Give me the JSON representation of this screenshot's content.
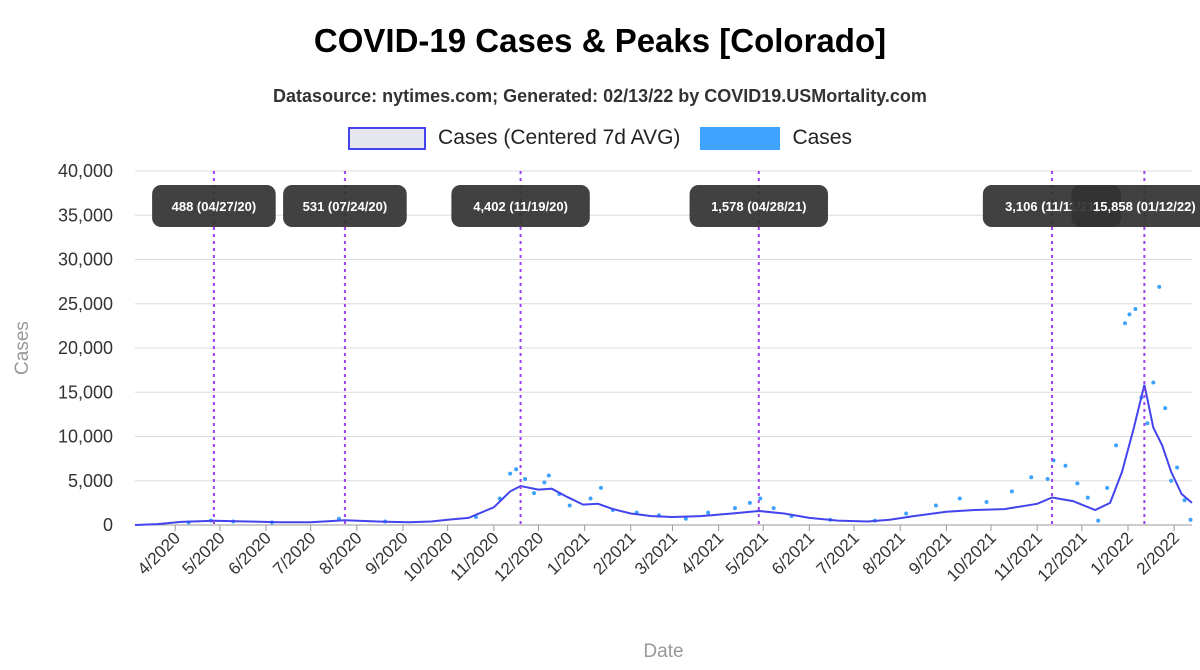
{
  "title": "COVID-19 Cases & Peaks [Colorado]",
  "subtitle": "Datasource: nytimes.com; Generated: 02/13/22 by COVID19.USMortality.com",
  "legend": {
    "avg_label": "Cases (Centered 7d AVG)",
    "cases_label": "Cases"
  },
  "colors": {
    "avg_line": "#4444ee",
    "cases_points": "#3ea2ff",
    "peak_line": "#a040ee",
    "peak_box": "#333333"
  },
  "chart_data": {
    "type": "line",
    "xlabel": "Date",
    "ylabel": "Cases",
    "ylim": [
      0,
      40000
    ],
    "y_ticks": [
      0,
      5000,
      10000,
      15000,
      20000,
      25000,
      30000,
      35000,
      40000
    ],
    "y_tick_labels": [
      "0",
      "5,000",
      "10,000",
      "15,000",
      "20,000",
      "25,000",
      "30,000",
      "35,000",
      "40,000"
    ],
    "x_range": [
      "2020-03-05",
      "2022-02-13"
    ],
    "x_tick_labels": [
      "4/2020",
      "5/2020",
      "6/2020",
      "7/2020",
      "8/2020",
      "9/2020",
      "10/2020",
      "11/2020",
      "12/2020",
      "1/2021",
      "2/2021",
      "3/2021",
      "4/2021",
      "5/2021",
      "6/2021",
      "7/2021",
      "8/2021",
      "9/2021",
      "10/2021",
      "11/2021",
      "12/2021",
      "1/2022",
      "2/2022"
    ],
    "grid": true,
    "legend_position": "top",
    "series": [
      {
        "name": "Cases (Centered 7d AVG)",
        "points": [
          [
            "2020-03-05",
            0
          ],
          [
            "2020-03-20",
            100
          ],
          [
            "2020-04-05",
            350
          ],
          [
            "2020-04-27",
            488
          ],
          [
            "2020-05-20",
            400
          ],
          [
            "2020-06-10",
            300
          ],
          [
            "2020-07-01",
            300
          ],
          [
            "2020-07-24",
            531
          ],
          [
            "2020-08-15",
            400
          ],
          [
            "2020-09-05",
            300
          ],
          [
            "2020-09-20",
            400
          ],
          [
            "2020-10-01",
            600
          ],
          [
            "2020-10-15",
            800
          ],
          [
            "2020-11-01",
            2000
          ],
          [
            "2020-11-12",
            3800
          ],
          [
            "2020-11-19",
            4402
          ],
          [
            "2020-12-01",
            4000
          ],
          [
            "2020-12-10",
            4100
          ],
          [
            "2020-12-20",
            3200
          ],
          [
            "2020-12-31",
            2300
          ],
          [
            "2021-01-10",
            2400
          ],
          [
            "2021-01-20",
            1800
          ],
          [
            "2021-02-01",
            1300
          ],
          [
            "2021-02-15",
            1000
          ],
          [
            "2021-03-01",
            900
          ],
          [
            "2021-03-20",
            1000
          ],
          [
            "2021-04-10",
            1300
          ],
          [
            "2021-04-28",
            1578
          ],
          [
            "2021-05-15",
            1300
          ],
          [
            "2021-06-01",
            800
          ],
          [
            "2021-06-20",
            500
          ],
          [
            "2021-07-10",
            400
          ],
          [
            "2021-07-25",
            600
          ],
          [
            "2021-08-10",
            1000
          ],
          [
            "2021-09-01",
            1500
          ],
          [
            "2021-09-20",
            1700
          ],
          [
            "2021-10-10",
            1800
          ],
          [
            "2021-11-01",
            2400
          ],
          [
            "2021-11-11",
            3106
          ],
          [
            "2021-11-25",
            2700
          ],
          [
            "2021-12-10",
            1700
          ],
          [
            "2021-12-20",
            2500
          ],
          [
            "2021-12-28",
            6000
          ],
          [
            "2022-01-05",
            11000
          ],
          [
            "2022-01-12",
            15858
          ],
          [
            "2022-01-18",
            11000
          ],
          [
            "2022-01-24",
            9000
          ],
          [
            "2022-01-30",
            6000
          ],
          [
            "2022-02-06",
            3500
          ],
          [
            "2022-02-13",
            2500
          ]
        ]
      },
      {
        "name": "Cases",
        "points": [
          [
            "2020-04-10",
            300
          ],
          [
            "2020-04-25",
            500
          ],
          [
            "2020-05-10",
            400
          ],
          [
            "2020-06-05",
            300
          ],
          [
            "2020-07-20",
            700
          ],
          [
            "2020-08-20",
            400
          ],
          [
            "2020-10-20",
            900
          ],
          [
            "2020-11-05",
            3000
          ],
          [
            "2020-11-12",
            5800
          ],
          [
            "2020-11-16",
            6300
          ],
          [
            "2020-11-22",
            5200
          ],
          [
            "2020-11-28",
            3600
          ],
          [
            "2020-12-05",
            4800
          ],
          [
            "2020-12-08",
            5600
          ],
          [
            "2020-12-15",
            3500
          ],
          [
            "2020-12-22",
            2200
          ],
          [
            "2021-01-05",
            3000
          ],
          [
            "2021-01-12",
            4200
          ],
          [
            "2021-01-20",
            1700
          ],
          [
            "2021-02-05",
            1400
          ],
          [
            "2021-02-20",
            1100
          ],
          [
            "2021-03-10",
            700
          ],
          [
            "2021-03-25",
            1400
          ],
          [
            "2021-04-12",
            1900
          ],
          [
            "2021-04-22",
            2500
          ],
          [
            "2021-04-29",
            3000
          ],
          [
            "2021-05-08",
            1900
          ],
          [
            "2021-05-20",
            1000
          ],
          [
            "2021-06-15",
            600
          ],
          [
            "2021-07-15",
            500
          ],
          [
            "2021-08-05",
            1300
          ],
          [
            "2021-08-25",
            2200
          ],
          [
            "2021-09-10",
            3000
          ],
          [
            "2021-09-28",
            2600
          ],
          [
            "2021-10-15",
            3800
          ],
          [
            "2021-10-28",
            5400
          ],
          [
            "2021-11-08",
            5200
          ],
          [
            "2021-11-12",
            7300
          ],
          [
            "2021-11-20",
            6700
          ],
          [
            "2021-11-28",
            4700
          ],
          [
            "2021-12-05",
            3100
          ],
          [
            "2021-12-12",
            500
          ],
          [
            "2021-12-18",
            4200
          ],
          [
            "2021-12-24",
            9000
          ],
          [
            "2021-12-30",
            22800
          ],
          [
            "2022-01-02",
            23800
          ],
          [
            "2022-01-06",
            24400
          ],
          [
            "2022-01-10",
            14400
          ],
          [
            "2022-01-14",
            11500
          ],
          [
            "2022-01-18",
            16100
          ],
          [
            "2022-01-22",
            26900
          ],
          [
            "2022-01-26",
            13200
          ],
          [
            "2022-01-30",
            5000
          ],
          [
            "2022-02-03",
            6500
          ],
          [
            "2022-02-08",
            2800
          ],
          [
            "2022-02-12",
            600
          ]
        ]
      }
    ],
    "peaks": [
      {
        "date": "2020-04-27",
        "label": "488 (04/27/20)"
      },
      {
        "date": "2020-07-24",
        "label": "531 (07/24/20)"
      },
      {
        "date": "2020-11-19",
        "label": "4,402 (11/19/20)"
      },
      {
        "date": "2021-04-28",
        "label": "1,578 (04/28/21)"
      },
      {
        "date": "2021-11-11",
        "label": "3,106 (11/11/21)"
      },
      {
        "date": "2022-01-12",
        "label": "15,858 (01/12/22)"
      }
    ]
  }
}
